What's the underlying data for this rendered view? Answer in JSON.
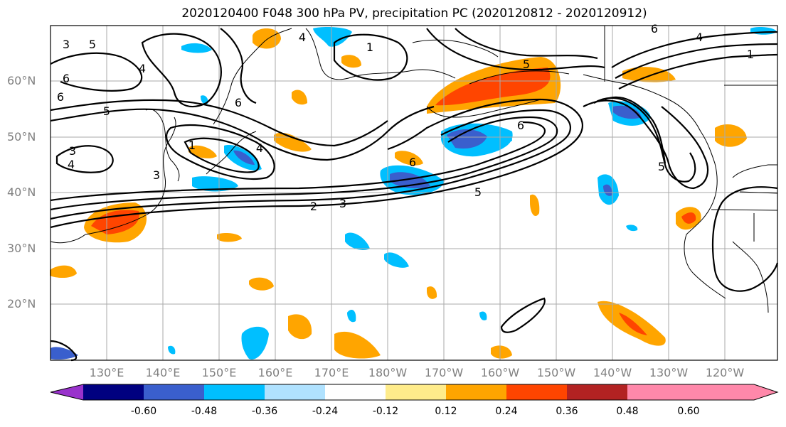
{
  "title": "2020120400 F048 300 hPa PV, precipitation PC (2020120812 - 2020120912)",
  "latitude_labels": [
    "60°N",
    "50°N",
    "40°N",
    "30°N",
    "20°N"
  ],
  "longitude_labels": [
    "130°E",
    "140°E",
    "150°E",
    "160°E",
    "170°E",
    "180°W",
    "170°W",
    "160°W",
    "150°W",
    "140°W",
    "130°W",
    "120°W"
  ],
  "contour_labels": [
    "1",
    "2",
    "3",
    "3",
    "3",
    "4",
    "4",
    "4",
    "4",
    "5",
    "5",
    "5",
    "5",
    "5",
    "6",
    "6",
    "6",
    "6",
    "6",
    "1",
    "1",
    "4",
    "6",
    "3"
  ],
  "colorbar": {
    "ticks": [
      "-0.60",
      "-0.48",
      "-0.36",
      "-0.24",
      "-0.12",
      "0.12",
      "0.24",
      "0.36",
      "0.48",
      "0.60"
    ],
    "colors": [
      "#9932cc",
      "#000080",
      "#3a5fcd",
      "#00bfff",
      "#b0e2ff",
      "#ffffff",
      "#ffec8b",
      "#ffa500",
      "#ff4500",
      "#b22222",
      "#ff88aa"
    ]
  }
}
